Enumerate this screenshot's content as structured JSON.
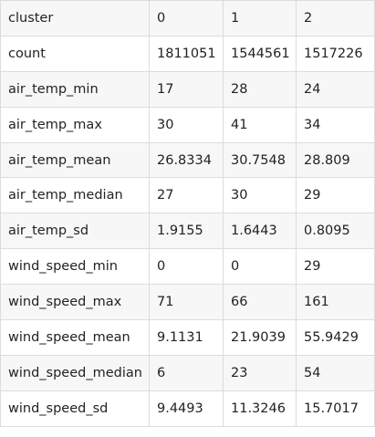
{
  "table": {
    "rows": [
      {
        "label": "cluster",
        "values": [
          "0",
          "1",
          "2"
        ]
      },
      {
        "label": "count",
        "values": [
          "1811051",
          "1544561",
          "1517226"
        ]
      },
      {
        "label": "air_temp_min",
        "values": [
          "17",
          "28",
          "24"
        ]
      },
      {
        "label": "air_temp_max",
        "values": [
          "30",
          "41",
          "34"
        ]
      },
      {
        "label": "air_temp_mean",
        "values": [
          "26.8334",
          "30.7548",
          "28.809"
        ]
      },
      {
        "label": "air_temp_median",
        "values": [
          "27",
          "30",
          "29"
        ]
      },
      {
        "label": "air_temp_sd",
        "values": [
          "1.9155",
          "1.6443",
          "0.8095"
        ]
      },
      {
        "label": "wind_speed_min",
        "values": [
          "0",
          "0",
          "29"
        ]
      },
      {
        "label": "wind_speed_max",
        "values": [
          "71",
          "66",
          "161"
        ]
      },
      {
        "label": "wind_speed_mean",
        "values": [
          "9.1131",
          "21.9039",
          "55.9429"
        ]
      },
      {
        "label": "wind_speed_median",
        "values": [
          "6",
          "23",
          "54"
        ]
      },
      {
        "label": "wind_speed_sd",
        "values": [
          "9.4493",
          "11.3246",
          "15.7017"
        ]
      }
    ]
  }
}
